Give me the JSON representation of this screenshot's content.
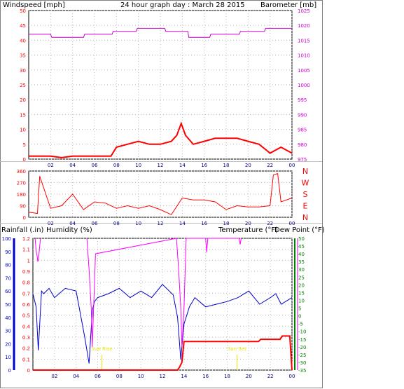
{
  "header": {
    "left_label": "Windspeed [mph]",
    "title": "24 hour graph day : March 28 2015",
    "right_label": "Barometer [mb]"
  },
  "x_tick_labels": [
    "02",
    "04",
    "06",
    "08",
    "10",
    "12",
    "14",
    "16",
    "18",
    "20",
    "22",
    "00"
  ],
  "colors": {
    "wind": "#ff0000",
    "direction": "#ff0000",
    "barometer": "#cc00cc",
    "humidity": "#0000cc",
    "rain": "#ff0000",
    "temperature": "#ff00ff",
    "temp_axis": "#008000",
    "dew_axis": "#cc00cc",
    "axis_text": "#000080",
    "sun_marker": "#e8e800"
  },
  "chart_data": [
    {
      "type": "line",
      "title": "24 hour graph day : March 28 2015",
      "x_range": [
        0,
        24
      ],
      "x_ticks": [
        "02",
        "04",
        "06",
        "08",
        "10",
        "12",
        "14",
        "16",
        "18",
        "20",
        "22",
        "00"
      ],
      "ylabel_left": "Windspeed [mph]",
      "ylim_left": [
        0,
        50
      ],
      "yticks_left": [
        0,
        5,
        10,
        15,
        20,
        25,
        30,
        35,
        40,
        45,
        50
      ],
      "ylabel_right": "Barometer [mb]",
      "ylim_right": [
        975,
        1025
      ],
      "yticks_right": [
        975,
        980,
        985,
        990,
        995,
        1000,
        1005,
        1010,
        1015,
        1020,
        1025
      ],
      "grid": true,
      "series": [
        {
          "name": "Windspeed [mph]",
          "axis": "left",
          "x": [
            0,
            1,
            2,
            3,
            4,
            5,
            6,
            7,
            7.5,
            8,
            9,
            10,
            11,
            12,
            13,
            13.5,
            13.9,
            14.3,
            15,
            16,
            17,
            18,
            19,
            20,
            21,
            22,
            23,
            24
          ],
          "values": [
            1,
            1,
            1,
            0.5,
            1,
            1,
            1,
            1,
            1,
            4,
            5,
            6,
            5,
            5,
            6,
            8,
            12,
            8,
            5,
            6,
            7,
            7,
            7,
            6,
            5,
            2,
            4,
            2
          ]
        },
        {
          "name": "Barometer [mb]",
          "axis": "right",
          "x": [
            0,
            2,
            2.1,
            5,
            5.1,
            7.6,
            7.7,
            9.8,
            9.9,
            12.4,
            12.5,
            14.5,
            14.6,
            16.5,
            16.6,
            19.2,
            19.3,
            21.5,
            21.6,
            23.8,
            24
          ],
          "values": [
            1017,
            1017,
            1016,
            1016,
            1017,
            1017,
            1018,
            1018,
            1019,
            1019,
            1018,
            1018,
            1016,
            1016,
            1017,
            1017,
            1018,
            1018,
            1019,
            1019,
            1019
          ]
        }
      ]
    },
    {
      "type": "line",
      "title": "",
      "x_range": [
        0,
        24
      ],
      "x_ticks": [
        "02",
        "04",
        "06",
        "08",
        "10",
        "12",
        "14",
        "16",
        "18",
        "20",
        "22",
        "00"
      ],
      "ylim_left": [
        0,
        360
      ],
      "yticks_left": [
        0,
        90,
        180,
        270,
        360
      ],
      "right_labels": [
        "N",
        "W",
        "S",
        "E",
        "N"
      ],
      "grid": true,
      "series": [
        {
          "name": "Wind direction",
          "axis": "left",
          "x": [
            0,
            0.8,
            1,
            2,
            3,
            4,
            5,
            6,
            7,
            8,
            9,
            10,
            11,
            12,
            13,
            14,
            15,
            16,
            17,
            18,
            19,
            20,
            21,
            22,
            22.3,
            22.7,
            23,
            24
          ],
          "values": [
            40,
            30,
            320,
            70,
            90,
            180,
            60,
            120,
            110,
            70,
            90,
            70,
            90,
            60,
            20,
            150,
            135,
            135,
            120,
            60,
            90,
            80,
            80,
            90,
            330,
            340,
            120,
            150
          ]
        }
      ]
    },
    {
      "type": "line",
      "title": "",
      "x_range": [
        0,
        24
      ],
      "x_ticks": [
        "02",
        "04",
        "06",
        "08",
        "10",
        "12",
        "14",
        "16",
        "18",
        "20",
        "22",
        "00"
      ],
      "ylabel_left": "Rainfall (.in)",
      "ylim_left": [
        0,
        1.2
      ],
      "yticks_left": [
        0,
        0.1,
        0.2,
        0.3,
        0.4,
        0.5,
        0.6,
        0.7,
        0.8,
        0.9,
        1,
        1.1,
        1.2
      ],
      "ylabel_left2": "Humidity (%)",
      "ylim_left2": [
        0,
        100
      ],
      "yticks_left2": [
        0,
        10,
        20,
        30,
        40,
        50,
        60,
        70,
        80,
        90,
        100
      ],
      "ylabel_right": "Temperature (°F)",
      "ylabel_right2": "Dew Point (°F)",
      "ylim_right": [
        -35,
        50
      ],
      "yticks_right": [
        -35,
        -30,
        -25,
        -20,
        -15,
        -10,
        -5,
        0,
        5,
        10,
        15,
        20,
        25,
        30,
        35,
        40,
        45,
        50
      ],
      "grid": true,
      "annotations": [
        {
          "text": "Sun Rise",
          "x": 6.4
        },
        {
          "text": "Sun Set",
          "x": 18.9
        }
      ],
      "series": [
        {
          "name": "Humidity (%)",
          "axis": "left2",
          "x": [
            0,
            0.3,
            0.5,
            0.8,
            1,
            1.5,
            2,
            3,
            4,
            4.8,
            5.2,
            5.5,
            5.7,
            6,
            7,
            8,
            9,
            10,
            11,
            12,
            13,
            13.4,
            13.7,
            14,
            14.5,
            15,
            16,
            17,
            18,
            19,
            20,
            21,
            22,
            22.5,
            23,
            24
          ],
          "values": [
            58,
            48,
            15,
            60,
            58,
            62,
            55,
            62,
            60,
            25,
            5,
            45,
            52,
            55,
            58,
            62,
            55,
            60,
            55,
            65,
            57,
            40,
            8,
            35,
            48,
            55,
            48,
            50,
            52,
            55,
            60,
            50,
            55,
            58,
            50,
            55
          ]
        },
        {
          "name": "Rainfall (.in)",
          "axis": "left",
          "x": [
            0,
            13.4,
            13.6,
            13.8,
            14.0,
            20.9,
            21.1,
            22.9,
            23.1,
            23.8,
            24
          ],
          "values": [
            0,
            0,
            0.03,
            0.07,
            0.26,
            0.26,
            0.28,
            0.28,
            0.31,
            0.31,
            0
          ]
        },
        {
          "name": "Temperature (°F)",
          "axis": "right",
          "x": [
            0.2,
            0.3,
            0.4,
            0.45,
            0.5,
            0.55,
            0.6,
            0.7,
            0.8,
            5.0,
            5.2,
            5.4,
            5.5,
            5.6,
            5.8,
            13.3,
            13.5,
            13.7,
            13.8,
            14.0,
            14.2,
            16.0,
            16.1,
            16.2,
            19.1,
            19.2,
            19.3
          ],
          "values": [
            50,
            42,
            38,
            35,
            36,
            39,
            43,
            50,
            null,
            50,
            30,
            5,
            -20,
            0,
            40,
            50,
            30,
            5,
            -20,
            5,
            50,
            50,
            41,
            50,
            50,
            46,
            50
          ]
        }
      ]
    }
  ]
}
